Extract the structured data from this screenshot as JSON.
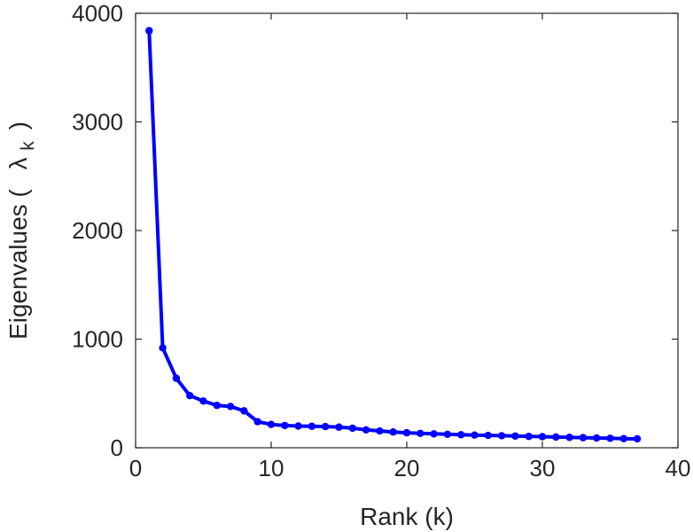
{
  "chart_data": {
    "type": "line",
    "title": "",
    "xlabel": "Rank (k)",
    "ylabel_prefix": "Eigenvalues (",
    "ylabel_symbol": "λ",
    "ylabel_subscript": "k",
    "ylabel_suffix": ")",
    "xlim": [
      0,
      40
    ],
    "ylim": [
      0,
      4000
    ],
    "xticks": [
      0,
      10,
      20,
      30,
      40
    ],
    "yticks": [
      0,
      1000,
      2000,
      3000,
      4000
    ],
    "grid": false,
    "box": true,
    "line_color": "#0000ff",
    "series": [
      {
        "x": [
          1,
          2,
          3,
          4,
          5,
          6,
          7,
          8,
          9,
          10,
          11,
          12,
          13,
          14,
          15,
          16,
          17,
          18,
          19,
          20,
          21,
          22,
          23,
          24,
          25,
          26,
          27,
          28,
          29,
          30,
          31,
          32,
          33,
          34,
          35,
          36,
          37
        ],
        "values": [
          3840,
          920,
          640,
          480,
          430,
          390,
          380,
          340,
          240,
          215,
          205,
          200,
          198,
          195,
          190,
          180,
          165,
          155,
          145,
          138,
          132,
          128,
          124,
          120,
          117,
          114,
          111,
          108,
          105,
          102,
          99,
          96,
          93,
          90,
          87,
          84,
          82
        ]
      }
    ]
  }
}
